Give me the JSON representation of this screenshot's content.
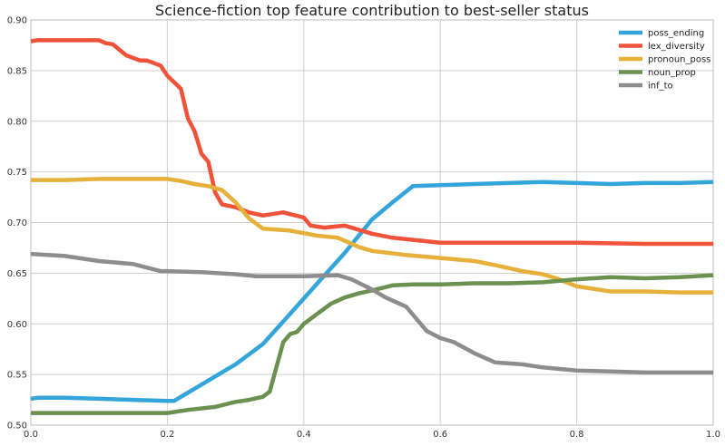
{
  "chart_data": {
    "type": "line",
    "title": "Science-fiction top feature contribution to best-seller status",
    "xlabel": "",
    "ylabel": "",
    "xlim": [
      0,
      1.0
    ],
    "ylim": [
      0.5,
      0.9
    ],
    "xticks": [
      "0.0",
      "0.2",
      "0.4",
      "0.6",
      "0.8",
      "1.0"
    ],
    "yticks": [
      "0.50",
      "0.55",
      "0.60",
      "0.65",
      "0.70",
      "0.75",
      "0.80",
      "0.85",
      "0.90"
    ],
    "xtick_values": [
      0,
      0.2,
      0.4,
      0.6,
      0.8,
      1.0
    ],
    "ytick_values": [
      0.5,
      0.55,
      0.6,
      0.65,
      0.7,
      0.75,
      0.8,
      0.85,
      0.9
    ],
    "grid": true,
    "legend_position": "top-right",
    "series": [
      {
        "name": "poss_ending",
        "color": "#34a5da",
        "x": [
          0,
          0.01,
          0.05,
          0.1,
          0.15,
          0.2,
          0.21,
          0.25,
          0.3,
          0.34,
          0.38,
          0.42,
          0.46,
          0.5,
          0.53,
          0.56,
          0.6,
          0.65,
          0.7,
          0.75,
          0.8,
          0.85,
          0.9,
          0.95,
          1.0
        ],
        "y": [
          0.526,
          0.527,
          0.527,
          0.526,
          0.525,
          0.524,
          0.524,
          0.54,
          0.56,
          0.58,
          0.61,
          0.64,
          0.67,
          0.703,
          0.72,
          0.736,
          0.737,
          0.738,
          0.739,
          0.74,
          0.739,
          0.738,
          0.739,
          0.739,
          0.74
        ]
      },
      {
        "name": "lex_diversity",
        "color": "#f0523a",
        "x": [
          0,
          0.01,
          0.03,
          0.06,
          0.1,
          0.11,
          0.12,
          0.14,
          0.16,
          0.17,
          0.19,
          0.2,
          0.22,
          0.23,
          0.24,
          0.25,
          0.26,
          0.27,
          0.28,
          0.3,
          0.32,
          0.34,
          0.37,
          0.4,
          0.41,
          0.43,
          0.46,
          0.5,
          0.53,
          0.6,
          0.7,
          0.8,
          0.9,
          1.0
        ],
        "y": [
          0.879,
          0.88,
          0.88,
          0.88,
          0.88,
          0.877,
          0.876,
          0.865,
          0.86,
          0.86,
          0.855,
          0.845,
          0.832,
          0.803,
          0.79,
          0.768,
          0.76,
          0.73,
          0.718,
          0.715,
          0.71,
          0.707,
          0.71,
          0.705,
          0.697,
          0.695,
          0.697,
          0.689,
          0.685,
          0.68,
          0.68,
          0.68,
          0.679,
          0.679
        ]
      },
      {
        "name": "pronoun_poss",
        "color": "#e6b03b",
        "x": [
          0,
          0.05,
          0.1,
          0.15,
          0.2,
          0.22,
          0.24,
          0.26,
          0.28,
          0.3,
          0.32,
          0.34,
          0.38,
          0.42,
          0.45,
          0.48,
          0.5,
          0.55,
          0.6,
          0.65,
          0.68,
          0.72,
          0.75,
          0.77,
          0.8,
          0.85,
          0.9,
          0.95,
          1.0
        ],
        "y": [
          0.742,
          0.742,
          0.743,
          0.743,
          0.743,
          0.741,
          0.738,
          0.736,
          0.732,
          0.72,
          0.704,
          0.694,
          0.692,
          0.687,
          0.685,
          0.676,
          0.672,
          0.668,
          0.665,
          0.662,
          0.658,
          0.652,
          0.649,
          0.645,
          0.637,
          0.632,
          0.632,
          0.631,
          0.631
        ]
      },
      {
        "name": "noun_prop",
        "color": "#6a9150",
        "x": [
          0,
          0.05,
          0.1,
          0.15,
          0.2,
          0.23,
          0.27,
          0.3,
          0.32,
          0.34,
          0.35,
          0.37,
          0.38,
          0.39,
          0.4,
          0.42,
          0.44,
          0.46,
          0.48,
          0.5,
          0.53,
          0.56,
          0.6,
          0.65,
          0.7,
          0.75,
          0.8,
          0.85,
          0.9,
          0.95,
          1.0
        ],
        "y": [
          0.512,
          0.512,
          0.512,
          0.512,
          0.512,
          0.515,
          0.518,
          0.523,
          0.525,
          0.528,
          0.533,
          0.582,
          0.59,
          0.592,
          0.6,
          0.61,
          0.62,
          0.626,
          0.63,
          0.633,
          0.638,
          0.639,
          0.639,
          0.64,
          0.64,
          0.641,
          0.644,
          0.646,
          0.645,
          0.646,
          0.648
        ]
      },
      {
        "name": "inf_to",
        "color": "#8d8d8d",
        "x": [
          0,
          0.05,
          0.1,
          0.15,
          0.19,
          0.2,
          0.25,
          0.3,
          0.33,
          0.4,
          0.45,
          0.47,
          0.5,
          0.52,
          0.55,
          0.58,
          0.6,
          0.62,
          0.65,
          0.68,
          0.72,
          0.75,
          0.8,
          0.85,
          0.9,
          0.95,
          1.0
        ],
        "y": [
          0.669,
          0.667,
          0.662,
          0.659,
          0.652,
          0.652,
          0.651,
          0.649,
          0.647,
          0.647,
          0.648,
          0.644,
          0.634,
          0.626,
          0.617,
          0.593,
          0.586,
          0.582,
          0.571,
          0.562,
          0.56,
          0.557,
          0.554,
          0.553,
          0.552,
          0.552,
          0.552
        ]
      }
    ]
  }
}
